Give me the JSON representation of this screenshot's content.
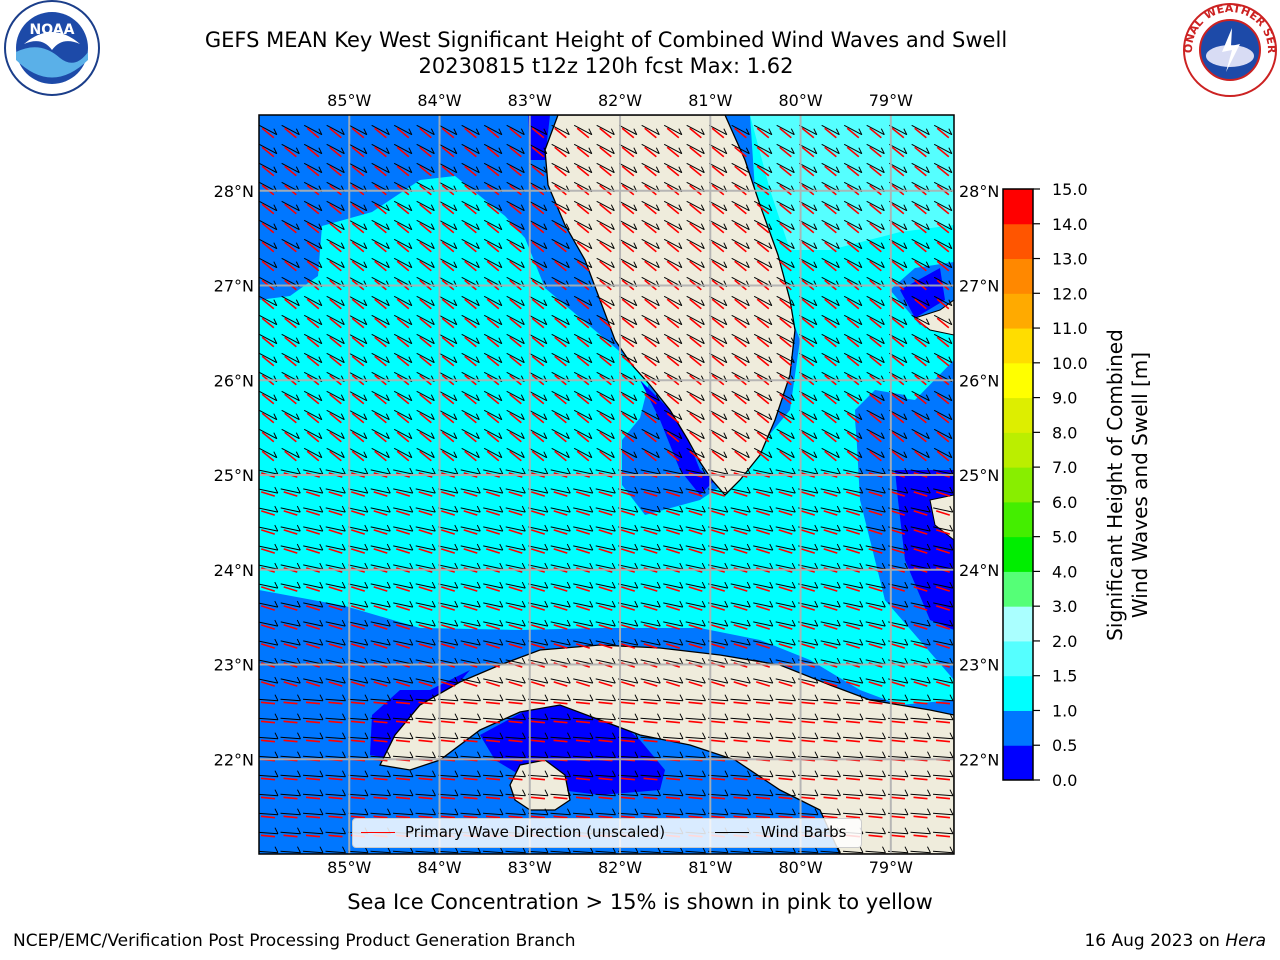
{
  "header": {
    "title_line1": "GEFS MEAN Key West Significant Height of Combined Wind Waves and Swell",
    "title_line2": "20230815 t12z 120h fcst   Max: 1.62",
    "logo_left": "NOAA",
    "logo_right": "NATIONAL WEATHER SERVICE"
  },
  "map": {
    "lon_labels": [
      "85°W",
      "84°W",
      "83°W",
      "82°W",
      "81°W",
      "80°W",
      "79°W"
    ],
    "lat_labels": [
      "28°N",
      "27°N",
      "26°N",
      "25°N",
      "24°N",
      "23°N",
      "22°N"
    ],
    "lon_range": [
      -86,
      -78.3
    ],
    "lat_range": [
      21,
      28.8
    ],
    "grid": true,
    "land_color": "#efecdc"
  },
  "colorbar": {
    "label": "Significant Height of Combined\nWind Waves and Swell [m]",
    "ticks": [
      "0.0",
      "0.5",
      "1.0",
      "1.5",
      "2.0",
      "3.0",
      "4.0",
      "5.0",
      "6.0",
      "7.0",
      "8.0",
      "9.0",
      "10.0",
      "11.0",
      "12.0",
      "13.0",
      "14.0",
      "15.0"
    ],
    "colors": [
      "#0000ff",
      "#0077ff",
      "#00ffff",
      "#55ffff",
      "#aaffff",
      "#55ff77",
      "#00ee00",
      "#44ee00",
      "#88ee00",
      "#bbee00",
      "#ddee00",
      "#ffff00",
      "#ffdd00",
      "#ffaa00",
      "#ff8800",
      "#ff5500",
      "#ff0000"
    ]
  },
  "legend": {
    "wave_label": "Primary Wave Direction (unscaled)",
    "barb_label": "Wind Barbs",
    "wave_color": "#ff0000",
    "barb_color": "#000000"
  },
  "footer": {
    "note": "Sea Ice Concentration > 15% is shown in pink to yellow",
    "left": "NCEP/EMC/Verification Post Processing Product Generation Branch",
    "right_date": "16 Aug 2023 on",
    "right_host": "Hera"
  }
}
